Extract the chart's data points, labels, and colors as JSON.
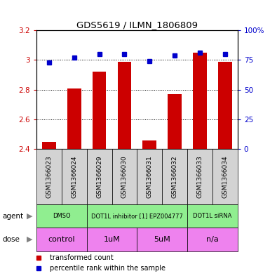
{
  "title": "GDS5619 / ILMN_1806809",
  "samples": [
    "GSM1366023",
    "GSM1366024",
    "GSM1366029",
    "GSM1366030",
    "GSM1366031",
    "GSM1366032",
    "GSM1366033",
    "GSM1366034"
  ],
  "red_values": [
    2.45,
    2.81,
    2.92,
    2.99,
    2.46,
    2.77,
    3.05,
    2.99
  ],
  "blue_values": [
    73,
    77,
    80,
    80,
    74,
    79,
    81,
    80
  ],
  "ylim_left": [
    2.4,
    3.2
  ],
  "ylim_right": [
    0,
    100
  ],
  "yticks_left": [
    2.4,
    2.6,
    2.8,
    3.0,
    3.2
  ],
  "yticks_right": [
    0,
    25,
    50,
    75,
    100
  ],
  "ytick_labels_left": [
    "2.4",
    "2.6",
    "2.8",
    "3",
    "3.2"
  ],
  "ytick_labels_right": [
    "0",
    "25",
    "50",
    "75",
    "100%"
  ],
  "agent_groups": [
    {
      "label": "DMSO",
      "start": 0,
      "end": 2
    },
    {
      "label": "DOT1L inhibitor [1] EPZ004777",
      "start": 2,
      "end": 6
    },
    {
      "label": "DOT1L siRNA",
      "start": 6,
      "end": 8
    }
  ],
  "dose_groups": [
    {
      "label": "control",
      "start": 0,
      "end": 2
    },
    {
      "label": "1uM",
      "start": 2,
      "end": 4
    },
    {
      "label": "5uM",
      "start": 4,
      "end": 6
    },
    {
      "label": "n/a",
      "start": 6,
      "end": 8
    }
  ],
  "legend_red": "transformed count",
  "legend_blue": "percentile rank within the sample",
  "bar_color": "#CC0000",
  "dot_color": "#0000CC",
  "tick_color_left": "#CC0000",
  "tick_color_right": "#0000CC",
  "agent_color": "#90EE90",
  "dose_color": "#EE82EE",
  "sample_color": "#D3D3D3"
}
